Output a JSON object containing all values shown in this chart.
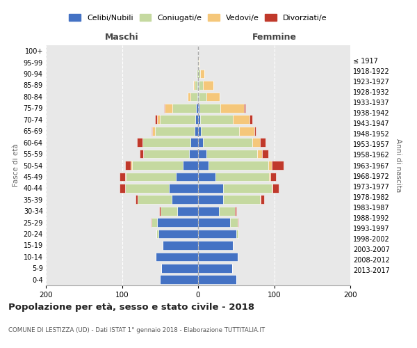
{
  "age_groups": [
    "0-4",
    "5-9",
    "10-14",
    "15-19",
    "20-24",
    "25-29",
    "30-34",
    "35-39",
    "40-44",
    "45-49",
    "50-54",
    "55-59",
    "60-64",
    "65-69",
    "70-74",
    "75-79",
    "80-84",
    "85-89",
    "90-94",
    "95-99",
    "100+"
  ],
  "birth_years": [
    "2013-2017",
    "2008-2012",
    "2003-2007",
    "1998-2002",
    "1993-1997",
    "1988-1992",
    "1983-1987",
    "1978-1982",
    "1973-1977",
    "1968-1972",
    "1963-1967",
    "1958-1962",
    "1953-1957",
    "1948-1952",
    "1943-1947",
    "1938-1942",
    "1933-1937",
    "1928-1932",
    "1923-1927",
    "1918-1922",
    "≤ 1917"
  ],
  "male": {
    "celibi": [
      50,
      48,
      56,
      47,
      52,
      54,
      27,
      35,
      38,
      29,
      20,
      12,
      10,
      5,
      4,
      3,
      1,
      1,
      0,
      0,
      0
    ],
    "coniugati": [
      0,
      0,
      0,
      0,
      3,
      7,
      22,
      44,
      58,
      66,
      67,
      60,
      63,
      52,
      46,
      31,
      9,
      4,
      2,
      0,
      0
    ],
    "vedovi": [
      0,
      0,
      0,
      0,
      0,
      0,
      0,
      0,
      0,
      1,
      2,
      0,
      0,
      3,
      4,
      10,
      4,
      1,
      0,
      0,
      0
    ],
    "divorziati": [
      0,
      0,
      0,
      0,
      0,
      1,
      2,
      3,
      7,
      7,
      7,
      5,
      7,
      1,
      3,
      1,
      0,
      0,
      0,
      0,
      0
    ]
  },
  "female": {
    "nubili": [
      50,
      45,
      52,
      46,
      50,
      42,
      27,
      33,
      33,
      23,
      14,
      11,
      6,
      4,
      3,
      2,
      1,
      1,
      0,
      0,
      0
    ],
    "coniugate": [
      0,
      0,
      0,
      0,
      3,
      10,
      21,
      48,
      64,
      70,
      78,
      67,
      65,
      50,
      43,
      27,
      10,
      5,
      3,
      1,
      0
    ],
    "vedove": [
      0,
      0,
      0,
      0,
      0,
      0,
      0,
      1,
      1,
      2,
      5,
      6,
      10,
      20,
      22,
      31,
      17,
      14,
      5,
      1,
      0
    ],
    "divorziate": [
      0,
      0,
      0,
      0,
      0,
      1,
      2,
      5,
      8,
      7,
      15,
      8,
      8,
      2,
      3,
      2,
      0,
      0,
      0,
      0,
      0
    ]
  },
  "colors": {
    "celibi": "#4472C4",
    "coniugati": "#C5D9A0",
    "vedovi": "#F5C77A",
    "divorziati": "#C0392B"
  },
  "title": "Popolazione per età, sesso e stato civile - 2018",
  "subtitle": "COMUNE DI LESTIZZA (UD) - Dati ISTAT 1° gennaio 2018 - Elaborazione TUTTITALIA.IT",
  "xlabel_left": "Maschi",
  "xlabel_right": "Femmine",
  "ylabel_left": "Fasce di età",
  "ylabel_right": "Anni di nascita",
  "xlim": 200,
  "legend_labels": [
    "Celibi/Nubili",
    "Coniugati/e",
    "Vedovi/e",
    "Divorziati/e"
  ],
  "bg_color": "#ffffff",
  "plot_bg_color": "#e8e8e8"
}
